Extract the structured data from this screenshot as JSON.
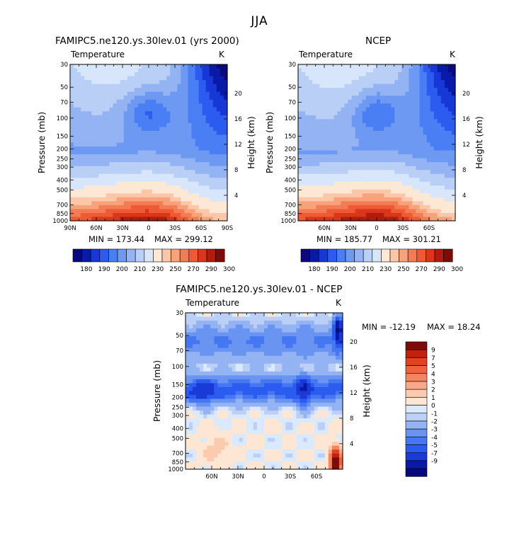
{
  "figure": {
    "title": "JJA"
  },
  "colors": {
    "palette_abs": [
      "#08087f",
      "#0a1aa8",
      "#1738d6",
      "#2c5bf0",
      "#4a7ef4",
      "#6e99f2",
      "#94b3f3",
      "#b9cff6",
      "#d8e6fb",
      "#fde8d6",
      "#fcc7a8",
      "#f8a27b",
      "#f47c55",
      "#ee5a35",
      "#d9361b",
      "#b31b0e",
      "#7f0a0a"
    ],
    "palette_diff": [
      "#08087f",
      "#0a1aa8",
      "#1a3ad8",
      "#2c5bf0",
      "#4677f2",
      "#6a94f2",
      "#94b3f3",
      "#bccff6",
      "#daeafc",
      "#fde6d3",
      "#fbcbb0",
      "#f8a78a",
      "#f48562",
      "#ef6240",
      "#e2401f",
      "#c2210e",
      "#7f0a0a"
    ]
  },
  "chart_data": [
    {
      "type": "heatmap",
      "title": "FAMIPC5.ne120.ys.30lev.01 (yrs 2000)",
      "subtitle": "Temperature",
      "units": "K",
      "ylabel": "Pressure (mb)",
      "ylabel_right": "Height (km)",
      "x_ticks": [
        "90N",
        "60N",
        "30N",
        "0",
        "30S",
        "60S",
        "90S"
      ],
      "y_ticks": [
        "30",
        "50",
        "70",
        "100",
        "150",
        "200",
        "250",
        "300",
        "400",
        "500",
        "700",
        "850",
        "1000"
      ],
      "y_right_ticks": [
        "20",
        "16",
        "12",
        "8",
        "4"
      ],
      "min_label": "MIN = 173.44",
      "max_label": "MAX = 299.12",
      "colorbar_labels": [
        "180",
        "190",
        "200",
        "210",
        "230",
        "250",
        "270",
        "290",
        "300"
      ]
    },
    {
      "type": "heatmap",
      "title": "NCEP",
      "subtitle": "Temperature",
      "units": "K",
      "ylabel": "Pressure (mb)",
      "ylabel_right": "Height (km)",
      "x_ticks": [
        "60N",
        "30N",
        "0",
        "30S",
        "60S"
      ],
      "y_ticks": [
        "30",
        "50",
        "70",
        "100",
        "150",
        "200",
        "250",
        "300",
        "400",
        "500",
        "700",
        "850",
        "1000"
      ],
      "y_right_ticks": [
        "20",
        "16",
        "12",
        "8",
        "4"
      ],
      "min_label": "MIN = 185.77",
      "max_label": "MAX = 301.21",
      "colorbar_labels": [
        "180",
        "190",
        "200",
        "210",
        "230",
        "250",
        "270",
        "290",
        "300"
      ]
    },
    {
      "type": "heatmap",
      "title": "FAMIPC5.ne120.ys.30lev.01 - NCEP",
      "subtitle": "Temperature",
      "units": "K",
      "ylabel": "Pressure (mb)",
      "ylabel_right": "Height (km)",
      "x_ticks": [
        "60N",
        "30N",
        "0",
        "30S",
        "60S"
      ],
      "y_ticks": [
        "30",
        "50",
        "70",
        "100",
        "150",
        "200",
        "250",
        "300",
        "400",
        "500",
        "700",
        "850",
        "1000"
      ],
      "y_right_ticks": [
        "20",
        "16",
        "12",
        "8",
        "4"
      ],
      "min_label": "MIN = -12.19",
      "max_label": "MAX =  18.24",
      "colorbar_labels": [
        "9",
        "7",
        "5",
        "4",
        "3",
        "2",
        "1",
        "0",
        "-1",
        "-2",
        "-3",
        "-4",
        "-5",
        "-7",
        "-9"
      ]
    }
  ]
}
